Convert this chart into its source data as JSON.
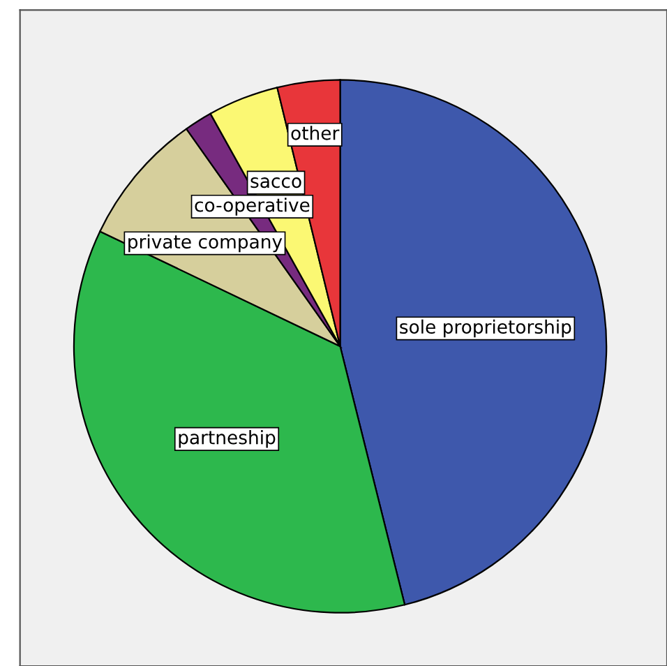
{
  "chart_data": {
    "type": "pie",
    "categories": [
      "sole proprietorship",
      "partneship",
      "private company",
      "co-operative",
      "sacco",
      "other"
    ],
    "values": [
      46.1,
      36,
      8.1,
      1.7,
      4.3,
      3.8
    ],
    "colors": [
      "#3e58ac",
      "#2db84d",
      "#d6cf9c",
      "#772b7f",
      "#fbf873",
      "#e8363a"
    ]
  }
}
